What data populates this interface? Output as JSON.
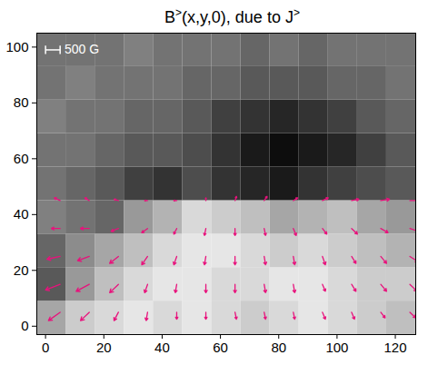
{
  "chart_data": {
    "type": "vector_field",
    "title": "B>(x,y,0), due to J>",
    "xlim": [
      -3,
      127
    ],
    "ylim": [
      -3,
      105
    ],
    "xticks": [
      0,
      20,
      40,
      60,
      80,
      100,
      120
    ],
    "yticks": [
      0,
      20,
      40,
      60,
      80,
      100
    ],
    "background": {
      "x": [
        2,
        12,
        22,
        32,
        42,
        52,
        62,
        72,
        82,
        92,
        102,
        112,
        122
      ],
      "y": [
        3,
        15,
        27,
        39,
        51,
        63,
        75,
        87,
        99
      ],
      "zlim": [
        -1000,
        1000
      ],
      "z": [
        [
          300,
          600,
          700,
          800,
          700,
          800,
          700,
          600,
          700,
          800,
          700,
          600,
          500
        ],
        [
          -300,
          200,
          500,
          700,
          800,
          800,
          700,
          700,
          800,
          800,
          700,
          600,
          600
        ],
        [
          -200,
          100,
          300,
          500,
          700,
          800,
          800,
          700,
          600,
          700,
          600,
          500,
          400
        ],
        [
          0,
          -100,
          -200,
          200,
          400,
          700,
          600,
          500,
          300,
          400,
          500,
          300,
          200
        ],
        [
          -100,
          -200,
          -300,
          -500,
          -600,
          -400,
          -600,
          -700,
          -800,
          -600,
          -500,
          -400,
          -300
        ],
        [
          -100,
          -100,
          -200,
          -300,
          -300,
          -400,
          -600,
          -800,
          -900,
          -800,
          -700,
          -500,
          -300
        ],
        [
          0,
          -100,
          -100,
          -200,
          -200,
          -300,
          -500,
          -600,
          -700,
          -600,
          -500,
          -300,
          -200
        ],
        [
          -100,
          0,
          -100,
          -100,
          -100,
          -200,
          -200,
          -300,
          -300,
          -300,
          -200,
          -200,
          -100
        ],
        [
          -100,
          -100,
          -100,
          0,
          -100,
          -100,
          -100,
          -200,
          -100,
          -200,
          -100,
          -100,
          -100
        ]
      ]
    },
    "vectors": {
      "color": "#e8127c",
      "x": [
        5,
        15,
        25,
        35,
        45,
        55,
        65,
        75,
        85,
        95,
        105,
        115,
        125
      ],
      "y": [
        5,
        15,
        25,
        35,
        45
      ],
      "u": [
        [
          -400,
          -300,
          -150,
          -50,
          0,
          0,
          50,
          50,
          50,
          100,
          100,
          150,
          200
        ],
        [
          -500,
          -450,
          -300,
          -100,
          -50,
          0,
          0,
          50,
          50,
          100,
          150,
          200,
          250
        ],
        [
          -450,
          -400,
          -300,
          -200,
          -100,
          -50,
          0,
          50,
          50,
          100,
          150,
          200,
          300
        ],
        [
          -300,
          -300,
          -250,
          -200,
          -100,
          -50,
          0,
          50,
          100,
          150,
          200,
          250,
          300
        ],
        [
          -200,
          -150,
          -150,
          -100,
          -100,
          0,
          50,
          100,
          150,
          200,
          250,
          300,
          300
        ]
      ],
      "v": [
        [
          -300,
          -300,
          -300,
          -300,
          -250,
          -250,
          -250,
          -250,
          -250,
          -250,
          -250,
          -200,
          -200
        ],
        [
          -200,
          -250,
          -300,
          -300,
          -300,
          -300,
          -300,
          -300,
          -300,
          -250,
          -250,
          -250,
          -250
        ],
        [
          -100,
          -150,
          -250,
          -300,
          -300,
          -300,
          -300,
          -300,
          -300,
          -300,
          -250,
          -250,
          -200
        ],
        [
          0,
          0,
          -100,
          -150,
          -200,
          -250,
          -250,
          -250,
          -250,
          -200,
          -200,
          -150,
          -100
        ],
        [
          100,
          100,
          50,
          0,
          0,
          100,
          150,
          150,
          100,
          100,
          50,
          50,
          0
        ]
      ]
    },
    "reference_vector": {
      "value": 500,
      "label": "500 G"
    }
  }
}
